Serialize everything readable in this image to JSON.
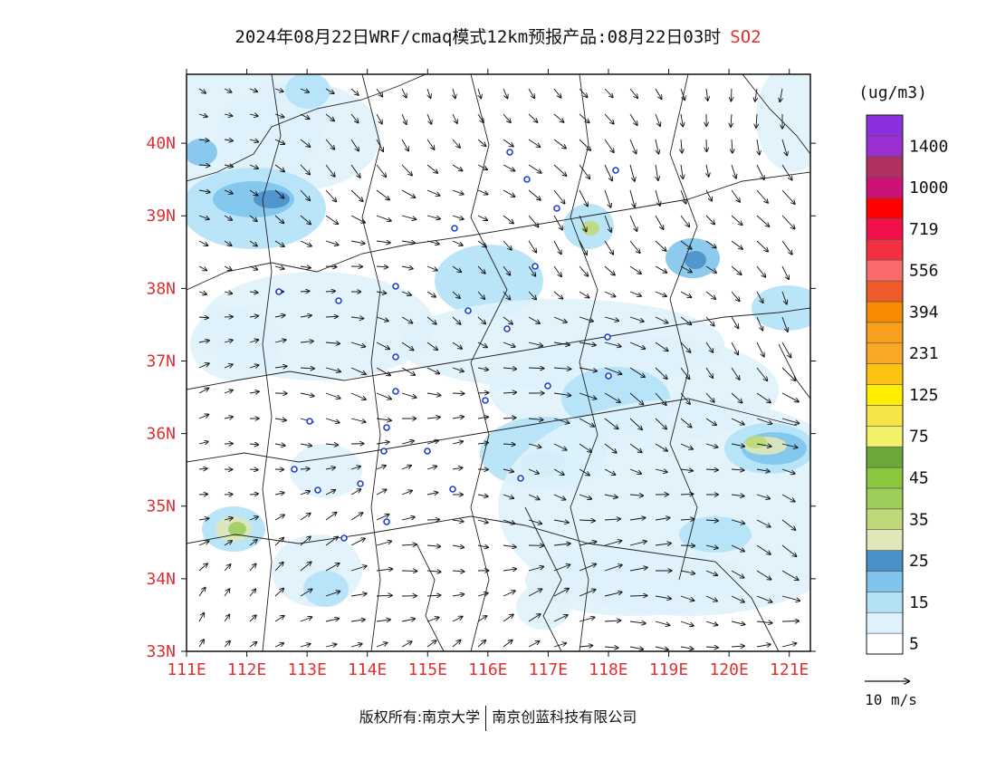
{
  "title": {
    "main": "2024年08月22日WRF/cmaq模式12km预报产品:08月22日03时",
    "species": "SO2",
    "species_color": "#e03030"
  },
  "axes": {
    "lat_labels": [
      "33N",
      "34N",
      "35N",
      "36N",
      "37N",
      "38N",
      "39N",
      "40N"
    ],
    "lon_labels": [
      "111E",
      "112E",
      "113E",
      "114E",
      "115E",
      "116E",
      "117E",
      "118E",
      "119E",
      "120E",
      "121E"
    ],
    "label_color": "#e03030"
  },
  "colorbar": {
    "unit": "(ug/m3)",
    "bands": [
      {
        "color": "#ffffff",
        "label": "5"
      },
      {
        "color": "#dff2fb",
        "label": ""
      },
      {
        "color": "#b3e2f7",
        "label": "15"
      },
      {
        "color": "#7fc4ec",
        "label": ""
      },
      {
        "color": "#4a90c8",
        "label": "25"
      },
      {
        "color": "#dfe8b8",
        "label": ""
      },
      {
        "color": "#bfd879",
        "label": "35"
      },
      {
        "color": "#9fcd5c",
        "label": ""
      },
      {
        "color": "#8cc63f",
        "label": "45"
      },
      {
        "color": "#6aa83a",
        "label": ""
      },
      {
        "color": "#f2f26a",
        "label": "75"
      },
      {
        "color": "#f7e34a",
        "label": ""
      },
      {
        "color": "#ffee00",
        "label": "125"
      },
      {
        "color": "#fcc312",
        "label": ""
      },
      {
        "color": "#f9a825",
        "label": "231"
      },
      {
        "color": "#f7a01e",
        "label": ""
      },
      {
        "color": "#f88a00",
        "label": "394"
      },
      {
        "color": "#ee5a2a",
        "label": ""
      },
      {
        "color": "#fa6a6a",
        "label": "556"
      },
      {
        "color": "#f2303f",
        "label": ""
      },
      {
        "color": "#f0104a",
        "label": "719"
      },
      {
        "color": "#ff0000",
        "label": ""
      },
      {
        "color": "#cc1177",
        "label": "1000"
      },
      {
        "color": "#b03060",
        "label": ""
      },
      {
        "color": "#9b30d0",
        "label": "1400"
      },
      {
        "color": "#8a30e0",
        "label": ""
      }
    ],
    "wind_reference": "10 m/s"
  },
  "footer": {
    "copyright": "版权所有:南京大学",
    "company": "南京创蓝科技有限公司"
  }
}
